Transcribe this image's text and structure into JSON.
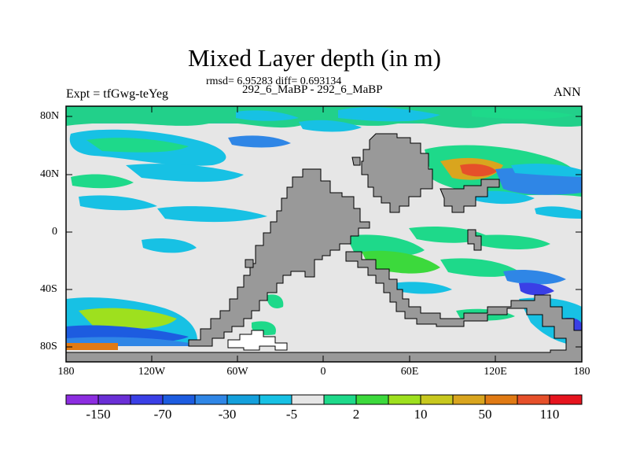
{
  "title": "Mixed Layer depth (in m)",
  "stats": "rmsd= 6.95283 diff= 0.693134",
  "subtitle": "292_6_MaBP - 292_6_MaBP",
  "experiment": "Expt = tfGwg-teYeg",
  "season": "ANN",
  "map": {
    "lat_ticks": [
      "80N",
      "40N",
      "0",
      "40S",
      "80S"
    ],
    "lon_ticks": [
      "180",
      "120W",
      "60W",
      "0",
      "60E",
      "120E",
      "180"
    ],
    "land_color": "#999999",
    "ocean_neutral_color": "#e6e6e6"
  },
  "colorbar": {
    "colors": [
      "#8c2de0",
      "#6a2fd6",
      "#3a3fe6",
      "#1d5ce0",
      "#2f86e6",
      "#14a0dc",
      "#17c1e4",
      "#e6e6e6",
      "#1ed98a",
      "#3cd93c",
      "#9ee01e",
      "#c8c81e",
      "#d9a51e",
      "#e07a14",
      "#e6502a",
      "#e6141e"
    ],
    "labels": [
      "-150",
      "-70",
      "-30",
      "-5",
      "2",
      "10",
      "50",
      "110"
    ]
  }
}
